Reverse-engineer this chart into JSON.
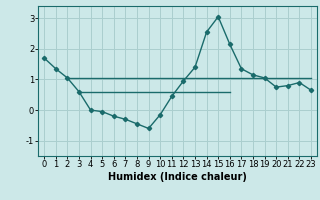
{
  "title": "",
  "xlabel": "Humidex (Indice chaleur)",
  "ylabel": "",
  "background_color": "#cce8e8",
  "grid_color": "#aacece",
  "line_color": "#1a6b6b",
  "x_values": [
    0,
    1,
    2,
    3,
    4,
    5,
    6,
    7,
    8,
    9,
    10,
    11,
    12,
    13,
    14,
    15,
    16,
    17,
    18,
    19,
    20,
    21,
    22,
    23
  ],
  "y_curve": [
    1.7,
    1.35,
    1.05,
    0.6,
    0.0,
    -0.05,
    -0.2,
    -0.3,
    -0.45,
    -0.6,
    -0.15,
    0.45,
    0.95,
    1.4,
    2.55,
    3.05,
    2.15,
    1.35,
    1.15,
    1.05,
    0.75,
    0.8,
    0.9,
    0.65
  ],
  "y_line1_x": [
    2,
    23
  ],
  "y_line1_y": [
    1.05,
    1.05
  ],
  "y_line2_x": [
    3,
    16
  ],
  "y_line2_y": [
    0.6,
    0.6
  ],
  "ylim": [
    -1.5,
    3.4
  ],
  "xlim": [
    -0.5,
    23.5
  ],
  "yticks": [
    -1,
    0,
    1,
    2,
    3
  ],
  "xticks": [
    0,
    1,
    2,
    3,
    4,
    5,
    6,
    7,
    8,
    9,
    10,
    11,
    12,
    13,
    14,
    15,
    16,
    17,
    18,
    19,
    20,
    21,
    22,
    23
  ],
  "tick_fontsize": 6,
  "xlabel_fontsize": 7
}
